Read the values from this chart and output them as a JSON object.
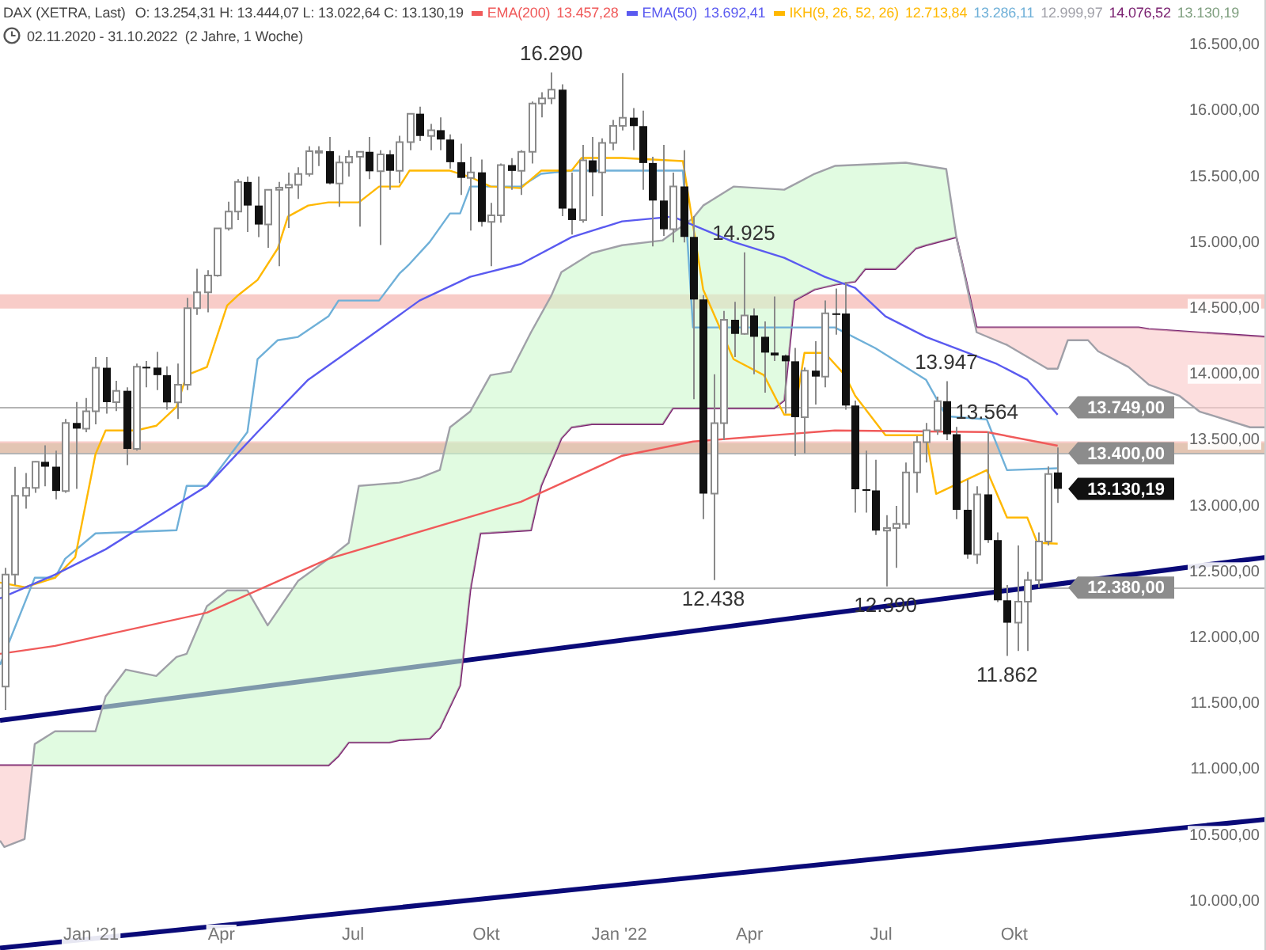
{
  "chart_data": {
    "type": "candlestick",
    "title": "DAX (XETRA, Last)",
    "subtitle": "02.11.2020 - 31.10.2022  (2 Jahre, 1 Woche)",
    "annotations": [
      "O: 13.254,31 H: 13.444,07 L: 13.022,64 C: 13.130,19",
      "13.457,28",
      "13.692,41",
      "12.713,84",
      "13.286,11",
      "12.999,97",
      "14.076,52",
      "13.130,19",
      {
        "text": "16.290",
        "x": "2021-11-15",
        "y": 16290
      },
      {
        "text": "14.925",
        "x": "2022-03-28",
        "y": 14925
      },
      {
        "text": "12.438",
        "x": "2022-03-07",
        "y": 12438
      },
      {
        "text": "12.390",
        "x": "2022-07-04",
        "y": 12390
      },
      {
        "text": "13.947",
        "x": "2022-08-15",
        "y": 13947
      },
      {
        "text": "13.564",
        "x": "2022-09-12",
        "y": 13564
      },
      {
        "text": "11.862",
        "x": "2022-09-26",
        "y": 11862
      },
      {
        "text": "13.130,19",
        "x": "2022-10-31",
        "y": 13130.19
      }
    ],
    "x": [
      "2020-11-02",
      "2020-11-09",
      "2020-11-16",
      "2020-11-23",
      "2020-11-30",
      "2020-12-07",
      "2020-12-14",
      "2020-12-21",
      "2020-12-28",
      "2021-01-04",
      "2021-01-11",
      "2021-01-18",
      "2021-01-25",
      "2021-02-01",
      "2021-02-08",
      "2021-02-15",
      "2021-02-22",
      "2021-03-01",
      "2021-03-08",
      "2021-03-15",
      "2021-03-22",
      "2021-03-29",
      "2021-04-05",
      "2021-04-12",
      "2021-04-19",
      "2021-04-26",
      "2021-05-03",
      "2021-05-10",
      "2021-05-17",
      "2021-05-24",
      "2021-05-31",
      "2021-06-07",
      "2021-06-14",
      "2021-06-21",
      "2021-06-28",
      "2021-07-05",
      "2021-07-12",
      "2021-07-19",
      "2021-07-26",
      "2021-08-02",
      "2021-08-09",
      "2021-08-16",
      "2021-08-23",
      "2021-08-30",
      "2021-09-06",
      "2021-09-13",
      "2021-09-20",
      "2021-09-27",
      "2021-10-04",
      "2021-10-11",
      "2021-10-18",
      "2021-10-25",
      "2021-11-01",
      "2021-11-08",
      "2021-11-15",
      "2021-11-22",
      "2021-11-29",
      "2021-12-06",
      "2021-12-13",
      "2021-12-20",
      "2021-12-27",
      "2022-01-03",
      "2022-01-10",
      "2022-01-17",
      "2022-01-24",
      "2022-01-31",
      "2022-02-07",
      "2022-02-14",
      "2022-02-21",
      "2022-02-28",
      "2022-03-07",
      "2022-03-14",
      "2022-03-21",
      "2022-03-28",
      "2022-04-04",
      "2022-04-11",
      "2022-04-18",
      "2022-04-25",
      "2022-05-02",
      "2022-05-09",
      "2022-05-16",
      "2022-05-23",
      "2022-05-30",
      "2022-06-06",
      "2022-06-13",
      "2022-06-20",
      "2022-06-27",
      "2022-07-04",
      "2022-07-11",
      "2022-07-18",
      "2022-07-25",
      "2022-08-01",
      "2022-08-08",
      "2022-08-15",
      "2022-08-22",
      "2022-08-29",
      "2022-09-05",
      "2022-09-12",
      "2022-09-19",
      "2022-09-26",
      "2022-10-03",
      "2022-10-10",
      "2022-10-17",
      "2022-10-24",
      "2022-10-31"
    ],
    "ohlc": [
      [
        11630,
        12530,
        11450,
        12480
      ],
      [
        12480,
        13297,
        12400,
        13077
      ],
      [
        13077,
        13250,
        12980,
        13137
      ],
      [
        13137,
        13340,
        13100,
        13335
      ],
      [
        13335,
        13460,
        13150,
        13298
      ],
      [
        13298,
        13420,
        13050,
        13114
      ],
      [
        13114,
        13660,
        13100,
        13630
      ],
      [
        13630,
        13790,
        13130,
        13587
      ],
      [
        13587,
        13820,
        13560,
        13719
      ],
      [
        13719,
        14130,
        13620,
        14049
      ],
      [
        14049,
        14130,
        13700,
        13788
      ],
      [
        13788,
        13950,
        13720,
        13874
      ],
      [
        13874,
        13900,
        13310,
        13433
      ],
      [
        13433,
        14080,
        13420,
        14056
      ],
      [
        14056,
        14100,
        13900,
        14050
      ],
      [
        14050,
        14170,
        13880,
        13993
      ],
      [
        13993,
        14060,
        13730,
        13786
      ],
      [
        13786,
        14080,
        13660,
        13920
      ],
      [
        13920,
        14580,
        13880,
        14502
      ],
      [
        14502,
        14800,
        14450,
        14621
      ],
      [
        14621,
        14790,
        14470,
        14749
      ],
      [
        14749,
        15110,
        14740,
        15107
      ],
      [
        15107,
        15310,
        15090,
        15234
      ],
      [
        15234,
        15480,
        15170,
        15459
      ],
      [
        15459,
        15500,
        15080,
        15280
      ],
      [
        15280,
        15500,
        15040,
        15136
      ],
      [
        15136,
        15400,
        14960,
        15400
      ],
      [
        15400,
        15460,
        14820,
        15416
      ],
      [
        15416,
        15530,
        15110,
        15437
      ],
      [
        15437,
        15570,
        15330,
        15520
      ],
      [
        15520,
        15730,
        15500,
        15693
      ],
      [
        15693,
        15730,
        15580,
        15693
      ],
      [
        15693,
        15800,
        15440,
        15448
      ],
      [
        15448,
        15660,
        15270,
        15607
      ],
      [
        15607,
        15700,
        15500,
        15650
      ],
      [
        15650,
        15690,
        15120,
        15688
      ],
      [
        15688,
        15800,
        15480,
        15540
      ],
      [
        15540,
        15700,
        14980,
        15669
      ],
      [
        15669,
        15700,
        15400,
        15544
      ],
      [
        15544,
        15810,
        15450,
        15761
      ],
      [
        15761,
        15980,
        15700,
        15977
      ],
      [
        15977,
        16030,
        15770,
        15808
      ],
      [
        15808,
        15900,
        15700,
        15852
      ],
      [
        15852,
        15950,
        15700,
        15781
      ],
      [
        15781,
        15820,
        15560,
        15609
      ],
      [
        15609,
        15750,
        15360,
        15490
      ],
      [
        15490,
        15650,
        15090,
        15532
      ],
      [
        15532,
        15630,
        15120,
        15156
      ],
      [
        15156,
        15300,
        14820,
        15206
      ],
      [
        15206,
        15600,
        15150,
        15587
      ],
      [
        15587,
        15640,
        15400,
        15543
      ],
      [
        15543,
        15700,
        15360,
        15688
      ],
      [
        15688,
        16070,
        15600,
        16054
      ],
      [
        16054,
        16140,
        15950,
        16094
      ],
      [
        16094,
        16290,
        16050,
        16159
      ],
      [
        16159,
        16200,
        15200,
        15257
      ],
      [
        15257,
        15530,
        15060,
        15170
      ],
      [
        15170,
        15740,
        15150,
        15623
      ],
      [
        15623,
        15800,
        15350,
        15532
      ],
      [
        15532,
        15790,
        15200,
        15756
      ],
      [
        15756,
        15930,
        15700,
        15885
      ],
      [
        15885,
        16285,
        15850,
        15947
      ],
      [
        15947,
        16020,
        15700,
        15883
      ],
      [
        15883,
        16000,
        15400,
        15603
      ],
      [
        15603,
        15650,
        14970,
        15318
      ],
      [
        15318,
        15740,
        15050,
        15100
      ],
      [
        15100,
        15530,
        15000,
        15425
      ],
      [
        15425,
        15700,
        15000,
        15042
      ],
      [
        15042,
        15200,
        13810,
        14567
      ],
      [
        14567,
        14600,
        12900,
        13094
      ],
      [
        13094,
        14000,
        12438,
        13628
      ],
      [
        13628,
        14480,
        13500,
        14413
      ],
      [
        14413,
        14550,
        14130,
        14306
      ],
      [
        14306,
        14925,
        14300,
        14446
      ],
      [
        14446,
        14500,
        14000,
        14284
      ],
      [
        14284,
        14400,
        13860,
        14164
      ],
      [
        14164,
        14590,
        14100,
        14142
      ],
      [
        14142,
        14150,
        13700,
        14098
      ],
      [
        14098,
        14200,
        13380,
        13674
      ],
      [
        13674,
        14050,
        13400,
        14027
      ],
      [
        14027,
        14250,
        13770,
        13982
      ],
      [
        13982,
        14560,
        13900,
        14462
      ],
      [
        14462,
        14650,
        14300,
        14460
      ],
      [
        14460,
        14700,
        13730,
        13762
      ],
      [
        13762,
        13800,
        12950,
        13127
      ],
      [
        13127,
        13420,
        12950,
        13118
      ],
      [
        13118,
        13350,
        12780,
        12813
      ],
      [
        12813,
        12930,
        12390,
        12833
      ],
      [
        12833,
        13000,
        12530,
        12864
      ],
      [
        12864,
        13330,
        12830,
        13254
      ],
      [
        13254,
        13530,
        13100,
        13484
      ],
      [
        13484,
        13630,
        13330,
        13574
      ],
      [
        13574,
        13830,
        13540,
        13795
      ],
      [
        13795,
        13947,
        13500,
        13544
      ],
      [
        13544,
        13600,
        12900,
        12971
      ],
      [
        12971,
        13200,
        12600,
        12631
      ],
      [
        12631,
        13150,
        12560,
        13088
      ],
      [
        13088,
        13564,
        12720,
        12741
      ],
      [
        12741,
        12800,
        12270,
        12284
      ],
      [
        12284,
        12400,
        11862,
        12114
      ],
      [
        12114,
        12700,
        11900,
        12273
      ],
      [
        12273,
        12500,
        11900,
        12438
      ],
      [
        12438,
        12800,
        12380,
        12731
      ],
      [
        12731,
        13300,
        12700,
        13243
      ],
      [
        13254.31,
        13444.07,
        13022.64,
        13130.19
      ]
    ],
    "series": [
      {
        "type": "line",
        "name": "EMA(200)",
        "color": "#f05a5a",
        "x": [
          "2020-10-30",
          "2020-12-07",
          "2021-03-22",
          "2021-06-14",
          "2021-10-25",
          "2022-01-03",
          "2022-02-21",
          "2022-05-30",
          "2022-09-12",
          "2022-10-31"
        ],
        "values": [
          11878,
          11938,
          12190,
          12599,
          13032,
          13381,
          13489,
          13573,
          13561,
          13457.28
        ]
      },
      {
        "type": "line",
        "name": "EMA(50)",
        "color": "#5a5af0",
        "x": [
          "2020-10-30",
          "2020-12-07",
          "2021-01-11",
          "2021-02-15",
          "2021-03-22",
          "2021-04-26",
          "2021-05-31",
          "2021-07-12",
          "2021-08-16",
          "2021-09-20",
          "2021-10-25",
          "2021-11-29",
          "2022-01-03",
          "2022-02-07",
          "2022-03-21",
          "2022-04-25",
          "2022-05-23",
          "2022-06-13",
          "2022-07-04",
          "2022-08-01",
          "2022-09-19",
          "2022-10-10",
          "2022-10-31"
        ],
        "values": [
          12299,
          12479,
          12671,
          12912,
          13152,
          13561,
          13958,
          14283,
          14559,
          14739,
          14836,
          15040,
          15160,
          15196,
          15004,
          14884,
          14739,
          14655,
          14439,
          14283,
          14078,
          13958,
          13692.41
        ]
      },
      {
        "type": "line",
        "name": "IKH(9, 26, 52, 26)",
        "color": "#ffb800",
        "x": [
          "2020-10-30",
          "2020-11-16",
          "2020-12-07",
          "2020-12-21",
          "2021-01-04",
          "2021-01-11",
          "2021-02-01",
          "2021-02-15",
          "2021-03-01",
          "2021-03-08",
          "2021-03-22",
          "2021-04-05",
          "2021-04-12",
          "2021-04-26",
          "2021-05-10",
          "2021-05-17",
          "2021-05-31",
          "2021-06-14",
          "2021-07-05",
          "2021-07-19",
          "2021-08-02",
          "2021-08-09",
          "2021-09-06",
          "2021-09-20",
          "2021-10-04",
          "2021-10-25",
          "2021-11-08",
          "2021-11-29",
          "2021-12-06",
          "2022-01-03",
          "2022-02-14",
          "2022-02-28",
          "2022-03-21",
          "2022-04-11",
          "2022-04-25",
          "2022-05-02",
          "2022-05-09",
          "2022-05-23",
          "2022-06-06",
          "2022-06-13",
          "2022-07-04",
          "2022-08-01",
          "2022-08-08",
          "2022-09-12",
          "2022-09-26",
          "2022-10-10",
          "2022-10-17",
          "2022-10-31"
        ],
        "values": [
          12419,
          12383,
          12455,
          12611,
          13393,
          13573,
          13573,
          13609,
          13753,
          13993,
          14054,
          14522,
          14594,
          14715,
          14955,
          15196,
          15280,
          15304,
          15304,
          15424,
          15424,
          15545,
          15545,
          15497,
          15424,
          15412,
          15545,
          15545,
          15641,
          15641,
          15617,
          14643,
          14114,
          13993,
          13693,
          13693,
          14162,
          14162,
          13993,
          13837,
          13537,
          13537,
          13092,
          13272,
          12912,
          12912,
          12720,
          12713.84
        ]
      },
      {
        "type": "line",
        "color": "#6fb0d8",
        "x": [
          "2020-10-30",
          "2020-11-23",
          "2020-12-07",
          "2020-12-14",
          "2021-01-04",
          "2021-03-01",
          "2021-03-08",
          "2021-03-22",
          "2021-04-19",
          "2021-04-26",
          "2021-05-10",
          "2021-05-24",
          "2021-06-14",
          "2021-06-21",
          "2021-07-19",
          "2021-08-02",
          "2021-08-09",
          "2021-08-23",
          "2021-09-06",
          "2021-09-13",
          "2021-09-20",
          "2021-10-25",
          "2021-11-08",
          "2021-11-29",
          "2022-02-14",
          "2022-02-21",
          "2022-05-30",
          "2022-06-27",
          "2022-07-18",
          "2022-08-01",
          "2022-08-15",
          "2022-09-12",
          "2022-09-26",
          "2022-10-31"
        ],
        "values": [
          11794,
          12455,
          12455,
          12599,
          12792,
          12816,
          13152,
          13152,
          13561,
          14114,
          14258,
          14283,
          14439,
          14559,
          14559,
          14763,
          14836,
          15004,
          15220,
          15220,
          15424,
          15424,
          15521,
          15545,
          15545,
          14355,
          14355,
          14198,
          14054,
          13958,
          13681,
          13657,
          13272,
          13286.11
        ]
      },
      {
        "type": "line",
        "color": "#a0a0a8",
        "x": [
          "2020-10-30",
          "2020-11-02",
          "2020-11-16",
          "2020-11-23",
          "2020-12-07",
          "2021-01-04",
          "2021-01-11",
          "2021-01-25",
          "2021-02-15",
          "2021-03-01",
          "2021-03-08",
          "2021-03-22",
          "2021-04-05",
          "2021-04-19",
          "2021-05-03",
          "2021-05-24",
          "2021-06-14",
          "2021-06-28",
          "2021-07-05",
          "2021-08-02",
          "2021-08-16",
          "2021-08-30",
          "2021-09-06",
          "2021-09-20",
          "2021-10-04",
          "2021-10-18",
          "2021-11-01",
          "2021-11-15",
          "2021-11-22",
          "2021-12-13",
          "2022-01-03",
          "2022-01-31",
          "2022-02-21",
          "2022-02-28",
          "2022-03-21",
          "2022-04-25",
          "2022-05-16",
          "2022-05-30",
          "2022-07-18",
          "2022-08-15",
          "2022-08-22",
          "2022-09-05",
          "2022-09-26",
          "2022-10-24",
          "2022-10-31",
          "2022-11-07",
          "2022-11-21",
          "2022-11-28",
          "2022-12-19",
          "2023-01-02",
          "2023-01-23",
          "2023-02-06",
          "2023-03-13",
          "2023-03-24"
        ],
        "values": [
          10460,
          10412,
          10472,
          11193,
          11290,
          11290,
          11554,
          11758,
          11710,
          11854,
          11878,
          12239,
          12359,
          12359,
          12094,
          12431,
          12599,
          12720,
          13152,
          13177,
          13213,
          13273,
          13597,
          13717,
          13993,
          14018,
          14318,
          14595,
          14775,
          14919,
          14979,
          15016,
          15184,
          15280,
          15424,
          15400,
          15521,
          15581,
          15605,
          15557,
          15040,
          14318,
          14222,
          14042,
          14042,
          14258,
          14258,
          14174,
          14054,
          13921,
          13837,
          13717,
          13597,
          13597
        ]
      },
      {
        "type": "line",
        "color": "#7a2070",
        "x": [
          "2020-10-30",
          "2021-06-14",
          "2021-06-21",
          "2021-06-28",
          "2021-07-26",
          "2021-08-02",
          "2021-08-23",
          "2021-08-30",
          "2021-09-13",
          "2021-09-20",
          "2021-09-27",
          "2021-11-01",
          "2021-11-08",
          "2021-11-22",
          "2021-11-29",
          "2021-12-13",
          "2022-01-31",
          "2022-02-07",
          "2022-04-18",
          "2022-04-25",
          "2022-05-02",
          "2022-05-16",
          "2022-05-30",
          "2022-06-13",
          "2022-06-20",
          "2022-07-11",
          "2022-07-25",
          "2022-08-01",
          "2022-08-22",
          "2022-09-05",
          "2022-12-26",
          "2023-01-02",
          "2023-03-24"
        ],
        "values": [
          11031,
          11031,
          11103,
          11205,
          11205,
          11223,
          11235,
          11314,
          11638,
          12359,
          12792,
          12816,
          13152,
          13513,
          13597,
          13621,
          13621,
          13741,
          13741,
          13801,
          14559,
          14643,
          14679,
          14703,
          14799,
          14799,
          14955,
          14979,
          15040,
          14355,
          14355,
          14343,
          14283
        ]
      },
      {
        "type": "line",
        "color": "#0a0a78",
        "x": [
          "2020-10-30",
          "2023-03-24"
        ],
        "values": [
          11373,
          12611
        ]
      },
      {
        "type": "line",
        "color": "#0a0a78",
        "x": [
          "2020-10-30",
          "2023-03-24"
        ],
        "values": [
          9645,
          10622
        ]
      }
    ],
    "bands": [
      {
        "axis": "y",
        "from": 14499,
        "to": 14607,
        "color": "#f4aaa4"
      },
      {
        "axis": "y",
        "from": 13400,
        "to": 13477,
        "color": "#a6e2a6"
      },
      {
        "axis": "y",
        "from": 13400,
        "to": 13490,
        "color": "#f4aaa4"
      }
    ],
    "ref_lines": [
      {
        "axis": "y",
        "value": 13749,
        "label": "13.749,00",
        "color": "#b4b4b4"
      },
      {
        "axis": "y",
        "value": 13400,
        "label": "13.400,00",
        "color": "#b4b4b4"
      },
      {
        "axis": "y",
        "value": 12380,
        "label": "12.380,00",
        "color": "#b4b4b4"
      }
    ],
    "xlim": [
      "2020-10-30",
      "2023-03-24"
    ],
    "xticks": [
      {
        "value": "2021-01-01",
        "label": "Jan '21"
      },
      {
        "value": "2021-04-01",
        "label": "Apr"
      },
      {
        "value": "2021-07-01",
        "label": "Jul"
      },
      {
        "value": "2021-10-01",
        "label": "Okt"
      },
      {
        "value": "2022-01-01",
        "label": "Jan '22"
      },
      {
        "value": "2022-04-01",
        "label": "Apr"
      },
      {
        "value": "2022-07-01",
        "label": "Jul"
      },
      {
        "value": "2022-10-01",
        "label": "Okt"
      }
    ],
    "ylim": [
      9630,
      16840
    ],
    "yticks": [
      {
        "value": 10000,
        "label": "10.000,00"
      },
      {
        "value": 10500,
        "label": "10.500,00"
      },
      {
        "value": 11000,
        "label": "11.000,00"
      },
      {
        "value": 11500,
        "label": "11.500,00"
      },
      {
        "value": 12000,
        "label": "12.000,00"
      },
      {
        "value": 12500,
        "label": "12.500,00"
      },
      {
        "value": 13000,
        "label": "13.000,00"
      },
      {
        "value": 13500,
        "label": "13.500,00"
      },
      {
        "value": 14000,
        "label": "14.000,00"
      },
      {
        "value": 14500,
        "label": "14.500,00"
      },
      {
        "value": 15000,
        "label": "15.000,00"
      },
      {
        "value": 15500,
        "label": "15.500,00"
      },
      {
        "value": 16000,
        "label": "16.000,00"
      },
      {
        "value": 16500,
        "label": "16.500,00"
      }
    ],
    "legend": "top left"
  }
}
